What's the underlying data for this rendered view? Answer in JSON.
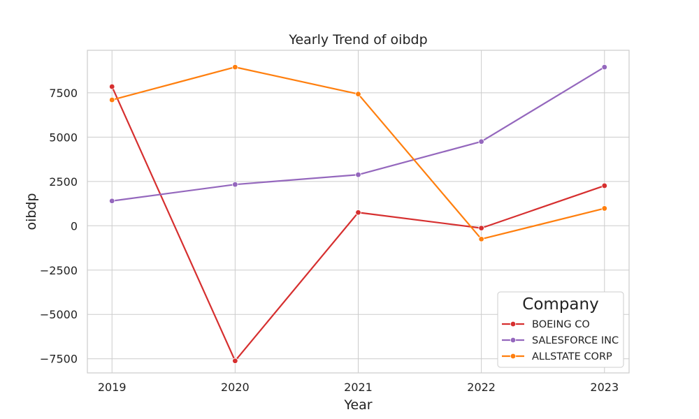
{
  "chart_data": {
    "type": "line",
    "title": "Yearly Trend of oibdp",
    "xlabel": "Year",
    "ylabel": "oibdp",
    "x": [
      2019,
      2020,
      2021,
      2022,
      2023
    ],
    "xlim": [
      2018.8,
      2023.2
    ],
    "ylim": [
      -8300,
      9900
    ],
    "yticks": [
      -7500,
      -5000,
      -2500,
      0,
      2500,
      5000,
      7500
    ],
    "ytick_labels": [
      "−7500",
      "−5000",
      "−2500",
      "0",
      "2500",
      "5000",
      "7500"
    ],
    "grid": true,
    "legend": {
      "title": "Company",
      "placement": "lower-right"
    },
    "series": [
      {
        "name": "BOEING CO",
        "color": "#d62f2f",
        "values": [
          7850,
          -7620,
          750,
          -130,
          2260
        ]
      },
      {
        "name": "SALESFORCE INC",
        "color": "#9467bd",
        "values": [
          1400,
          2330,
          2880,
          4750,
          8950
        ]
      },
      {
        "name": "ALLSTATE CORP",
        "color": "#ff7f0e",
        "values": [
          7100,
          8950,
          7430,
          -750,
          980
        ]
      }
    ]
  }
}
